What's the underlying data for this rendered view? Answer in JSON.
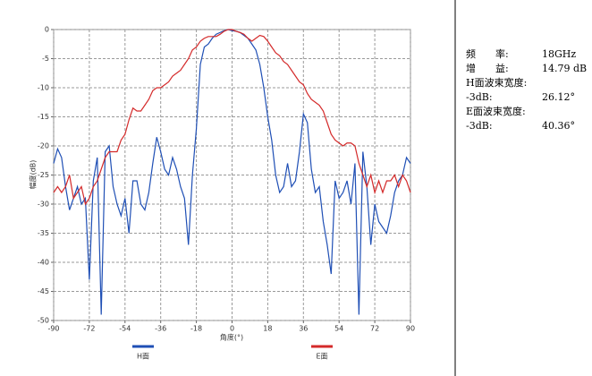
{
  "chart_data": {
    "type": "line",
    "xlabel": "角度(°)",
    "ylabel": "幅度(dB)",
    "x": [
      -90,
      -88,
      -86,
      -84,
      -82,
      -80,
      -78,
      -76,
      -74,
      -72,
      -70,
      -68,
      -66,
      -64,
      -62,
      -60,
      -58,
      -56,
      -54,
      -52,
      -50,
      -48,
      -46,
      -44,
      -42,
      -40,
      -38,
      -36,
      -34,
      -32,
      -30,
      -28,
      -26,
      -24,
      -22,
      -20,
      -18,
      -16,
      -14,
      -12,
      -10,
      -8,
      -6,
      -4,
      -2,
      0,
      2,
      4,
      6,
      8,
      10,
      12,
      14,
      16,
      18,
      20,
      22,
      24,
      26,
      28,
      30,
      32,
      34,
      36,
      38,
      40,
      42,
      44,
      46,
      48,
      50,
      52,
      54,
      56,
      58,
      60,
      62,
      64,
      66,
      68,
      70,
      72,
      74,
      76,
      78,
      80,
      82,
      84,
      86,
      88,
      90
    ],
    "series": [
      {
        "name": "H面",
        "color": "#1f4fb5",
        "values": [
          -23,
          -20.5,
          -22,
          -27,
          -31,
          -29,
          -27,
          -30,
          -29,
          -43,
          -26,
          -22,
          -49,
          -21,
          -20,
          -27,
          -30,
          -32,
          -29,
          -35,
          -26,
          -26,
          -30,
          -31,
          -28,
          -23,
          -18.5,
          -21,
          -24,
          -25,
          -22,
          -24,
          -27,
          -29,
          -37,
          -25,
          -17,
          -6,
          -3,
          -2.5,
          -1.5,
          -0.8,
          -0.5,
          -0.2,
          0,
          -0.2,
          -0.3,
          -0.5,
          -1,
          -1.5,
          -2.5,
          -3.5,
          -6,
          -10,
          -15,
          -19,
          -25,
          -28,
          -27,
          -23,
          -27,
          -26,
          -21,
          -14.5,
          -16,
          -24,
          -28,
          -27,
          -33,
          -37,
          -42,
          -26,
          -29,
          -28,
          -26,
          -30,
          -23,
          -49,
          -21,
          -27,
          -37,
          -30,
          -33,
          -34,
          -35,
          -32,
          -28,
          -26,
          -25,
          -22,
          -23
        ]
      },
      {
        "name": "E面",
        "color": "#d42a2a",
        "values": [
          -28,
          -27,
          -28,
          -27,
          -25,
          -29,
          -28,
          -27,
          -30,
          -29,
          -27,
          -26,
          -24,
          -22,
          -21,
          -21,
          -21,
          -19,
          -18,
          -15.5,
          -13.5,
          -14,
          -14,
          -13,
          -12,
          -10.5,
          -10,
          -10,
          -9.5,
          -9,
          -8,
          -7.5,
          -7,
          -6,
          -5,
          -3.5,
          -3,
          -2,
          -1.5,
          -1.2,
          -1.2,
          -1.2,
          -0.8,
          -0.3,
          0,
          0,
          -0.3,
          -0.5,
          -0.8,
          -1.5,
          -2,
          -1.5,
          -1,
          -1.2,
          -2,
          -3,
          -4,
          -4.5,
          -5.5,
          -6,
          -7,
          -8,
          -9,
          -9.5,
          -11,
          -12,
          -12.5,
          -13,
          -14,
          -16,
          -18,
          -19,
          -19.5,
          -20,
          -19.5,
          -19.5,
          -20,
          -23,
          -25,
          -27,
          -25,
          -28,
          -26,
          -28,
          -26,
          -26,
          -25,
          -27,
          -25,
          -26,
          -28
        ]
      }
    ],
    "xlim": [
      -90,
      90
    ],
    "xticks": [
      -90,
      -72,
      -54,
      -36,
      -18,
      0,
      18,
      36,
      54,
      72,
      90
    ],
    "ylim": [
      -50,
      0
    ],
    "yticks": [
      0,
      -5,
      -10,
      -15,
      -20,
      -25,
      -30,
      -35,
      -40,
      -45,
      -50
    ],
    "grid": true,
    "legend": "bottom"
  },
  "info": {
    "rows": [
      [
        "频　　率:",
        "18GHz"
      ],
      [
        "增　　益:",
        "14.79 dB"
      ],
      [
        "H面波束宽度:"
      ],
      [
        "-3dB:",
        "26.12°"
      ],
      [
        "E面波束宽度:"
      ],
      [
        "-3dB:",
        "40.36°"
      ]
    ]
  }
}
